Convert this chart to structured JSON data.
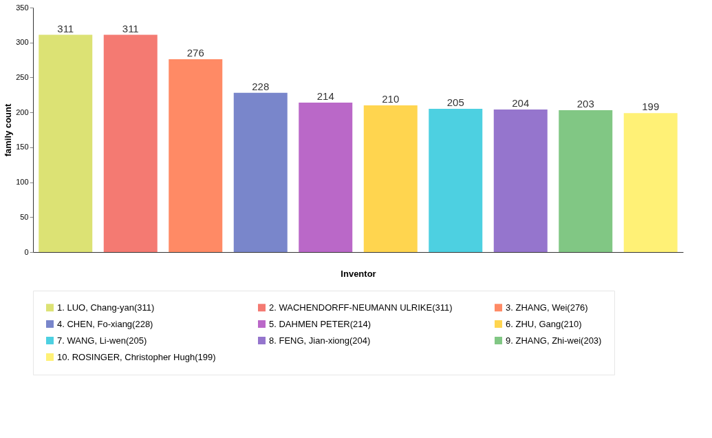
{
  "chart_data": {
    "type": "bar",
    "xlabel": "Inventor",
    "ylabel": "family count",
    "categories": [
      null,
      null,
      null,
      null,
      null,
      null,
      null,
      null,
      null,
      null
    ],
    "series": [
      {
        "name": "1. LUO, Chang-yan(311)",
        "color": "#dce274",
        "values": [
          311,
          null,
          null,
          null,
          null,
          null,
          null,
          null,
          null,
          null
        ]
      },
      {
        "name": "2. WACHENDORFF-NEUMANN ULRIKE(311)",
        "color": "#f47a72",
        "values": [
          null,
          311,
          null,
          null,
          null,
          null,
          null,
          null,
          null,
          null
        ]
      },
      {
        "name": "3. ZHANG, Wei(276)",
        "color": "#ff8a65",
        "values": [
          null,
          null,
          276,
          null,
          null,
          null,
          null,
          null,
          null,
          null
        ]
      },
      {
        "name": "4. CHEN, Fo-xiang(228)",
        "color": "#7986cb",
        "values": [
          null,
          null,
          null,
          228,
          null,
          null,
          null,
          null,
          null,
          null
        ]
      },
      {
        "name": "5. DAHMEN PETER(214)",
        "color": "#ba68c8",
        "values": [
          null,
          null,
          null,
          null,
          214,
          null,
          null,
          null,
          null,
          null
        ]
      },
      {
        "name": "6. ZHU, Gang(210)",
        "color": "#ffd54f",
        "values": [
          null,
          null,
          null,
          null,
          null,
          210,
          null,
          null,
          null,
          null
        ]
      },
      {
        "name": "7. WANG, Li-wen(205)",
        "color": "#4dd0e1",
        "values": [
          null,
          null,
          null,
          null,
          null,
          null,
          205,
          null,
          null,
          null
        ]
      },
      {
        "name": "8. FENG, Jian-xiong(204)",
        "color": "#9575cd",
        "values": [
          null,
          null,
          null,
          null,
          null,
          null,
          null,
          204,
          null,
          null
        ]
      },
      {
        "name": "9. ZHANG, Zhi-wei(203)",
        "color": "#81c784",
        "values": [
          null,
          null,
          null,
          null,
          null,
          null,
          null,
          null,
          203,
          null
        ]
      },
      {
        "name": "10. ROSINGER, Christopher Hugh(199)",
        "color": "#fff176",
        "values": [
          null,
          null,
          null,
          null,
          null,
          null,
          null,
          null,
          null,
          199
        ]
      }
    ],
    "ylim": [
      0,
      350
    ],
    "yticks": [
      0,
      50,
      100,
      150,
      200,
      250,
      300,
      350
    ],
    "data_labels": true,
    "legend": "bottom",
    "tick_labels": "y",
    "grid": false
  }
}
